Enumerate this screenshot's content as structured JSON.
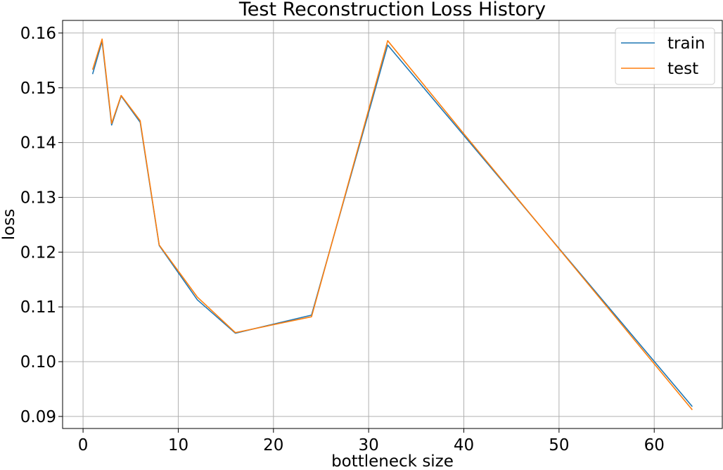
{
  "chart_data": {
    "type": "line",
    "title": "Test Reconstruction Loss History",
    "xlabel": "bottleneck size",
    "ylabel": "loss",
    "xlim": [
      -2.15,
      67.15
    ],
    "ylim": [
      0.0878,
      0.1623
    ],
    "xticks": [
      0,
      10,
      20,
      30,
      40,
      50,
      60
    ],
    "yticks": [
      0.09,
      0.1,
      0.11,
      0.12,
      0.13,
      0.14,
      0.15,
      0.16
    ],
    "grid": true,
    "legend_position": "top-right",
    "series": [
      {
        "name": "train",
        "color": "#1f77b4",
        "x": [
          1,
          2,
          3,
          4,
          6,
          8,
          12,
          16,
          24,
          32,
          40,
          64
        ],
        "y": [
          0.1525,
          0.1585,
          0.1432,
          0.1485,
          0.1437,
          0.1212,
          0.1113,
          0.1052,
          0.1085,
          0.1578,
          0.1413,
          0.0918
        ]
      },
      {
        "name": "test",
        "color": "#ff7f0e",
        "x": [
          1,
          2,
          3,
          4,
          6,
          8,
          12,
          16,
          24,
          32,
          40,
          64
        ],
        "y": [
          0.1533,
          0.1589,
          0.1435,
          0.1486,
          0.144,
          0.1213,
          0.1118,
          0.1053,
          0.1082,
          0.1586,
          0.1416,
          0.0912
        ]
      }
    ]
  }
}
